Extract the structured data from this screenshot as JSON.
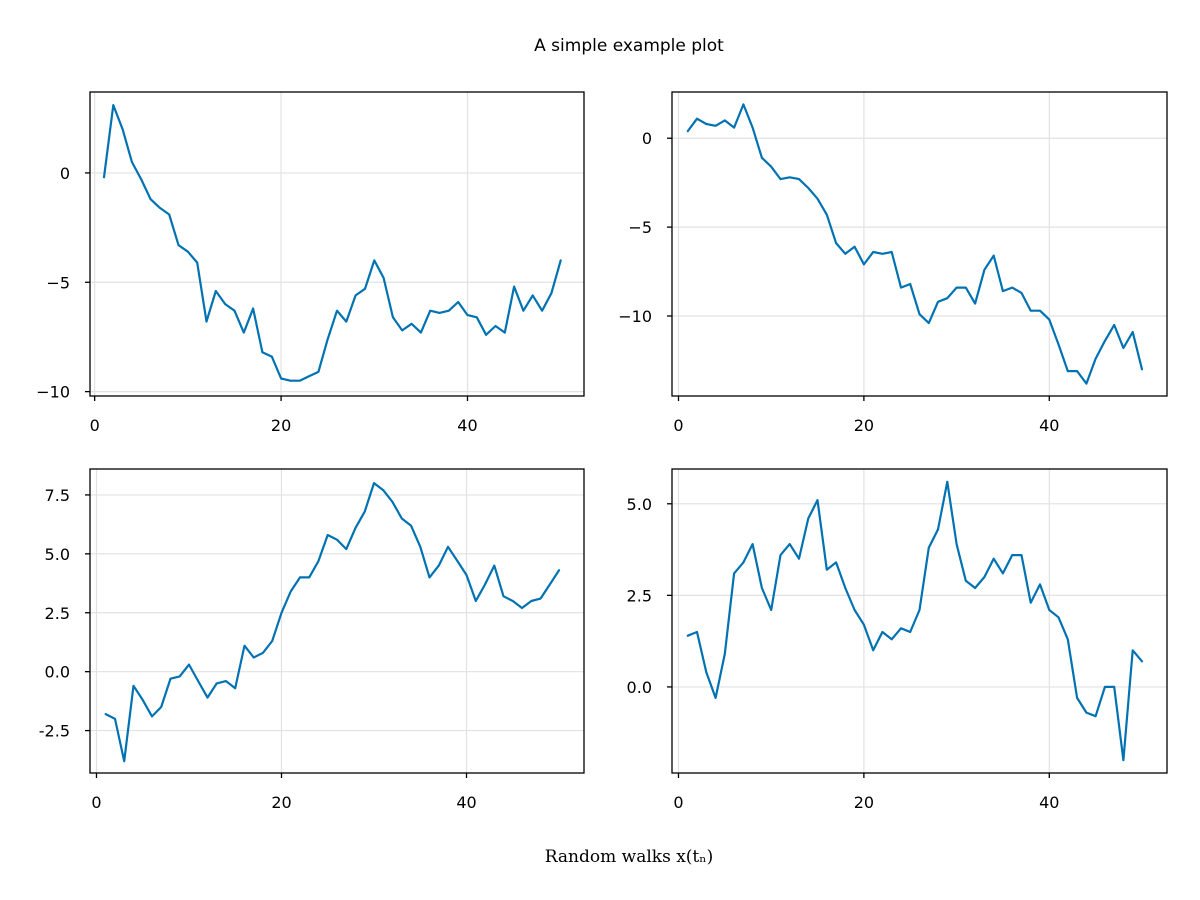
{
  "figure": {
    "title": "A simple example plot",
    "xlabel": "Random walks x(tₙ)",
    "line_color": "#0072b2"
  },
  "chart_data": [
    {
      "type": "line",
      "xlim": [
        -0.5,
        52.5
      ],
      "ylim": [
        -10.2,
        3.7
      ],
      "xticks": [
        0,
        20,
        40
      ],
      "yticks": [
        -10,
        -5,
        0
      ],
      "ytick_labels": [
        "−10",
        "−5",
        "0"
      ],
      "grid": true,
      "x": [
        1,
        2,
        3,
        4,
        5,
        6,
        7,
        8,
        9,
        10,
        11,
        12,
        13,
        14,
        15,
        16,
        17,
        18,
        19,
        20,
        21,
        22,
        23,
        24,
        25,
        26,
        27,
        28,
        29,
        30,
        31,
        32,
        33,
        34,
        35,
        36,
        37,
        38,
        39,
        40,
        41,
        42,
        43,
        44,
        45,
        46,
        47,
        48,
        49,
        50
      ],
      "values": [
        -0.2,
        3.1,
        2.0,
        0.5,
        -0.3,
        -1.2,
        -1.6,
        -1.9,
        -3.3,
        -3.6,
        -4.1,
        -6.8,
        -5.4,
        -6.0,
        -6.3,
        -7.3,
        -6.2,
        -8.2,
        -8.4,
        -9.4,
        -9.5,
        -9.5,
        -9.3,
        -9.1,
        -7.6,
        -6.3,
        -6.8,
        -5.6,
        -5.3,
        -4.0,
        -4.8,
        -6.6,
        -7.2,
        -6.9,
        -7.3,
        -6.3,
        -6.4,
        -6.3,
        -5.9,
        -6.5,
        -6.6,
        -7.4,
        -7.0,
        -7.3,
        -5.2,
        -6.3,
        -5.6,
        -6.3,
        -5.5,
        -4.0
      ]
    },
    {
      "type": "line",
      "xlim": [
        -0.7,
        52.7
      ],
      "ylim": [
        -14.5,
        2.6
      ],
      "xticks": [
        0,
        20,
        40
      ],
      "yticks": [
        -10,
        -5,
        0
      ],
      "ytick_labels": [
        "−10",
        "−5",
        "0"
      ],
      "grid": true,
      "x": [
        1,
        2,
        3,
        4,
        5,
        6,
        7,
        8,
        9,
        10,
        11,
        12,
        13,
        14,
        15,
        16,
        17,
        18,
        19,
        20,
        21,
        22,
        23,
        24,
        25,
        26,
        27,
        28,
        29,
        30,
        31,
        32,
        33,
        34,
        35,
        36,
        37,
        38,
        39,
        40,
        41,
        42,
        43,
        44,
        45,
        46,
        47,
        48,
        49,
        50
      ],
      "values": [
        0.4,
        1.1,
        0.8,
        0.7,
        1.0,
        0.6,
        1.9,
        0.6,
        -1.1,
        -1.6,
        -2.3,
        -2.2,
        -2.3,
        -2.8,
        -3.4,
        -4.3,
        -5.9,
        -6.5,
        -6.1,
        -7.1,
        -6.4,
        -6.5,
        -6.4,
        -8.4,
        -8.2,
        -9.9,
        -10.4,
        -9.2,
        -9.0,
        -8.4,
        -8.4,
        -9.3,
        -7.4,
        -6.6,
        -8.6,
        -8.4,
        -8.7,
        -9.7,
        -9.7,
        -10.2,
        -11.6,
        -13.1,
        -13.1,
        -13.8,
        -12.4,
        -11.4,
        -10.5,
        -11.8,
        -10.9,
        -13.0
      ]
    },
    {
      "type": "line",
      "xlim": [
        -0.7,
        52.7
      ],
      "ylim": [
        -4.3,
        8.6
      ],
      "xticks": [
        0,
        20,
        40
      ],
      "yticks": [
        -2.5,
        0.0,
        2.5,
        5.0,
        7.5
      ],
      "ytick_labels": [
        "-2.5",
        "0.0",
        "2.5",
        "5.0",
        "7.5"
      ],
      "grid": true,
      "x": [
        1,
        2,
        3,
        4,
        5,
        6,
        7,
        8,
        9,
        10,
        11,
        12,
        13,
        14,
        15,
        16,
        17,
        18,
        19,
        20,
        21,
        22,
        23,
        24,
        25,
        26,
        27,
        28,
        29,
        30,
        31,
        32,
        33,
        34,
        35,
        36,
        37,
        38,
        39,
        40,
        41,
        42,
        43,
        44,
        45,
        46,
        47,
        48,
        49,
        50
      ],
      "values": [
        -1.8,
        -2.0,
        -3.8,
        -0.6,
        -1.2,
        -1.9,
        -1.5,
        -0.3,
        -0.2,
        0.3,
        -0.4,
        -1.1,
        -0.5,
        -0.4,
        -0.7,
        1.1,
        0.6,
        0.8,
        1.3,
        2.5,
        3.4,
        4.0,
        4.0,
        4.7,
        5.8,
        5.6,
        5.2,
        6.1,
        6.8,
        8.0,
        7.7,
        7.2,
        6.5,
        6.2,
        5.3,
        4.0,
        4.5,
        5.3,
        4.7,
        4.1,
        3.0,
        3.7,
        4.5,
        3.2,
        3.0,
        2.7,
        3.0,
        3.1,
        3.7,
        4.3
      ]
    },
    {
      "type": "line",
      "xlim": [
        -0.7,
        52.7
      ],
      "ylim": [
        -2.35,
        5.95
      ],
      "xticks": [
        0,
        20,
        40
      ],
      "yticks": [
        0.0,
        2.5,
        5.0
      ],
      "ytick_labels": [
        "0.0",
        "2.5",
        "5.0"
      ],
      "grid": true,
      "x": [
        1,
        2,
        3,
        4,
        5,
        6,
        7,
        8,
        9,
        10,
        11,
        12,
        13,
        14,
        15,
        16,
        17,
        18,
        19,
        20,
        21,
        22,
        23,
        24,
        25,
        26,
        27,
        28,
        29,
        30,
        31,
        32,
        33,
        34,
        35,
        36,
        37,
        38,
        39,
        40,
        41,
        42,
        43,
        44,
        45,
        46,
        47,
        48,
        49,
        50
      ],
      "values": [
        1.4,
        1.5,
        0.4,
        -0.3,
        0.9,
        3.1,
        3.4,
        3.9,
        2.7,
        2.1,
        3.6,
        3.9,
        3.5,
        4.6,
        5.1,
        3.2,
        3.4,
        2.7,
        2.1,
        1.7,
        1.0,
        1.5,
        1.3,
        1.6,
        1.5,
        2.1,
        3.8,
        4.3,
        5.6,
        3.9,
        2.9,
        2.7,
        3.0,
        3.5,
        3.1,
        3.6,
        3.6,
        2.3,
        2.8,
        2.1,
        1.9,
        1.3,
        -0.3,
        -0.7,
        -0.8,
        0.0,
        0.0,
        -2.0,
        1.0,
        0.7
      ]
    }
  ]
}
